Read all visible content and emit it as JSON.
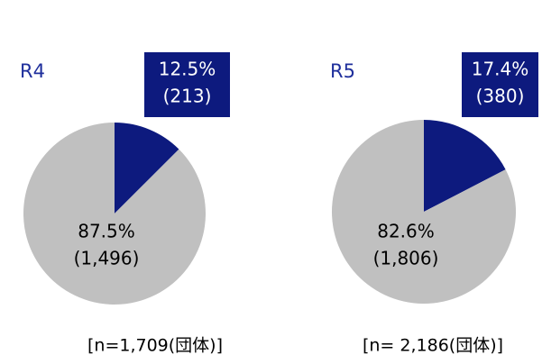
{
  "chart_data": [
    {
      "type": "pie",
      "title": "R4",
      "values": [
        12.5,
        87.5
      ],
      "value_labels": [
        "12.5%",
        "87.5%"
      ],
      "counts": [
        213,
        1496
      ],
      "count_labels": [
        "(213)",
        "(1,496)"
      ],
      "colors": [
        "#0d1a7e",
        "#c0c0c0"
      ],
      "note": "[n=1,709(団体)]"
    },
    {
      "type": "pie",
      "title": "R5",
      "values": [
        17.4,
        82.6
      ],
      "value_labels": [
        "17.4%",
        "82.6%"
      ],
      "counts": [
        380,
        1806
      ],
      "count_labels": [
        "(380)",
        "(1,806)"
      ],
      "colors": [
        "#0d1a7e",
        "#c0c0c0"
      ],
      "note": "[n= 2,186(団体)]"
    }
  ]
}
